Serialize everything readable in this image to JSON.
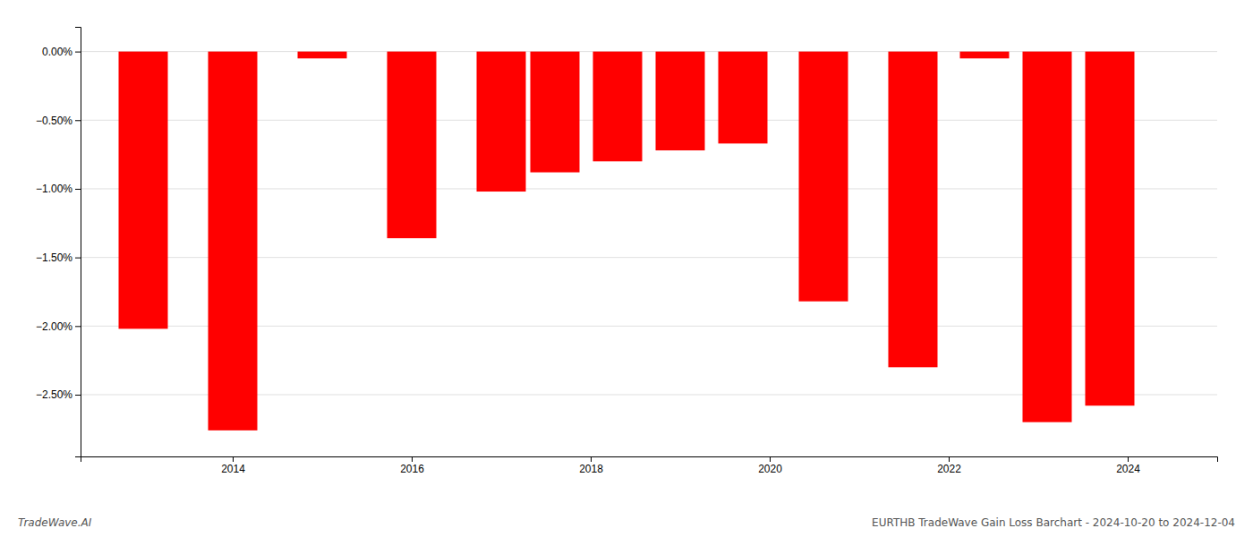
{
  "chart_data": {
    "type": "bar",
    "x": [
      2013,
      2014,
      2015,
      2016,
      2017,
      2017.6,
      2018.3,
      2019,
      2019.7,
      2020.6,
      2021.6,
      2022.4,
      2023.1,
      2023.8
    ],
    "values": [
      -2.02,
      -2.76,
      -0.05,
      -1.36,
      -1.02,
      -0.88,
      -0.8,
      -0.72,
      -0.67,
      -1.82,
      -2.3,
      -0.05,
      -2.7,
      -2.58
    ],
    "color": "#ff0000",
    "xlim": [
      2012.3,
      2025.0
    ],
    "xticks": [
      2014,
      2016,
      2018,
      2020,
      2022,
      2024
    ],
    "ylim": [
      -2.95,
      0.18
    ],
    "yticks": [
      {
        "value": 0.0,
        "label": "0.00%"
      },
      {
        "value": -0.5,
        "label": "−0.50%"
      },
      {
        "value": -1.0,
        "label": "−1.00%"
      },
      {
        "value": -1.5,
        "label": "−1.50%"
      },
      {
        "value": -2.0,
        "label": "−2.00%"
      },
      {
        "value": -2.5,
        "label": "−2.50%"
      }
    ],
    "grid": true,
    "annotations": [
      "TradeWave.AI",
      "EURTHB TradeWave Gain Loss Barchart - 2024-10-20 to 2024-12-04"
    ]
  }
}
